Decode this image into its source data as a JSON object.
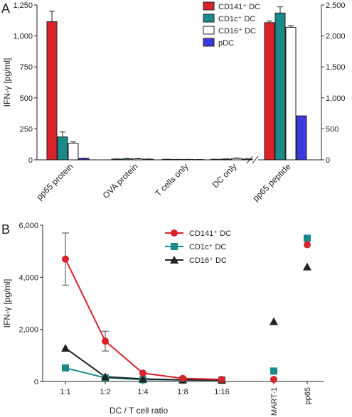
{
  "colors": {
    "cd141": "#d9232a",
    "cd1c": "#1a8a8a",
    "cd16": "#ffffff",
    "pdc": "#3a3ae0",
    "axis": "#222222"
  },
  "chart_data": [
    {
      "panel": "A",
      "type": "bar",
      "ylabel": "IFN-γ [pg/ml]",
      "ylim_left": [
        0,
        1250
      ],
      "ylim_right": [
        0,
        2500
      ],
      "yticks_left": [
        0,
        250,
        500,
        750,
        1000,
        1250
      ],
      "yticks_left_labels": [
        "0",
        "250",
        "500",
        "750",
        "1,000",
        "1,250"
      ],
      "yticks_right": [
        0,
        500,
        1000,
        1500,
        2000,
        2500
      ],
      "yticks_right_labels": [
        "0",
        "500",
        "1,000",
        "1,500",
        "2,000",
        "2,500"
      ],
      "categories": [
        "pp65 protein",
        "OVA protein",
        "T cells only",
        "DC only",
        "pp65 peptide"
      ],
      "axis_break_between": [
        3,
        4
      ],
      "last_category_uses_right_axis": true,
      "legend": {
        "position": "top-right"
      },
      "series": [
        {
          "name": "CD141⁺ DC",
          "key": "cd141",
          "values": [
            1115,
            6,
            4,
            4,
            2215
          ],
          "errors": [
            85,
            2,
            1,
            1,
            25
          ]
        },
        {
          "name": "CD1c⁺ DC",
          "key": "cd1c",
          "values": [
            185,
            8,
            3,
            6,
            2370
          ],
          "errors": [
            40,
            3,
            1,
            2,
            100
          ]
        },
        {
          "name": "CD16⁺ DC",
          "key": "cd16",
          "values": [
            133,
            8,
            3,
            12,
            2140
          ],
          "errors": [
            12,
            3,
            1,
            3,
            25
          ]
        },
        {
          "name": "pDC",
          "key": "pdc",
          "values": [
            12,
            5,
            2,
            6,
            710
          ],
          "errors": [
            2,
            2,
            1,
            2,
            0
          ]
        }
      ]
    },
    {
      "panel": "B",
      "type": "line",
      "ylabel": "IFN-γ [pg/ml]",
      "xlabel": "DC / T cell ratio",
      "ylim": [
        0,
        6000
      ],
      "yticks": [
        0,
        2000,
        4000,
        6000
      ],
      "ytick_labels": [
        "0",
        "2,000",
        "4,000",
        "6,000"
      ],
      "categories": [
        "1:1",
        "1:2",
        "1:4",
        "1:8",
        "1:16",
        "MART-1",
        "pp65"
      ],
      "connected_categories": 5,
      "legend": {
        "position": "top-center"
      },
      "series": [
        {
          "name": "CD141⁺ DC",
          "key": "cd141",
          "marker": "circle",
          "values": [
            4700,
            1550,
            320,
            120,
            80,
            80,
            5250
          ],
          "errors": [
            1000,
            380,
            40,
            20,
            15,
            0,
            0
          ]
        },
        {
          "name": "CD1c⁺ DC",
          "key": "cd1c",
          "marker": "square",
          "values": [
            520,
            140,
            70,
            60,
            60,
            400,
            5500
          ],
          "errors": [
            0,
            0,
            0,
            0,
            0,
            0,
            0
          ]
        },
        {
          "name": "CD16⁺ DC",
          "key": "cd16",
          "marker": "triangle",
          "values": [
            1280,
            180,
            100,
            60,
            50,
            2300,
            4400
          ],
          "errors": [
            0,
            0,
            0,
            0,
            0,
            0,
            0
          ]
        }
      ]
    }
  ],
  "labels": {
    "panel_a": "A",
    "panel_b": "B"
  }
}
